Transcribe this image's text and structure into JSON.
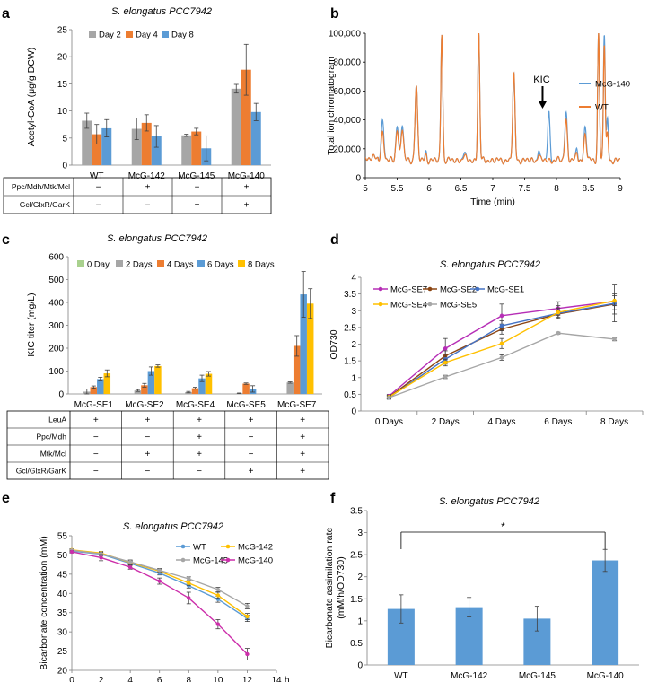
{
  "panels": {
    "a": {
      "letter": "a",
      "chart_data": {
        "type": "bar",
        "title": "S. elongatus PCC7942",
        "ylabel": "Acetyl-CoA (μg/g DCW)",
        "xlabel": "",
        "ylim": [
          0,
          25
        ],
        "yticks": [
          0,
          5,
          10,
          15,
          20,
          25
        ],
        "categories": [
          "WT",
          "McG-142",
          "McG-145",
          "McG-140"
        ],
        "series": [
          {
            "name": "Day 2",
            "color": "#A6A6A6",
            "values": [
              8.2,
              6.7,
              5.5,
              14.1
            ],
            "errors": [
              1.4,
              2.0,
              0.2,
              0.8
            ]
          },
          {
            "name": "Day 4",
            "color": "#ED7D31",
            "values": [
              5.7,
              7.8,
              6.2,
              17.6
            ],
            "errors": [
              1.8,
              1.5,
              0.6,
              4.7
            ]
          },
          {
            "name": "Day 8",
            "color": "#5B9BD5",
            "values": [
              6.8,
              5.3,
              3.1,
              9.8
            ],
            "errors": [
              1.6,
              2.0,
              2.3,
              1.6
            ]
          }
        ],
        "table": {
          "rows": [
            {
              "label": "Ppc/Mdh/Mtk/Mcl",
              "cells": [
                "−",
                "+",
                "−",
                "+"
              ]
            },
            {
              "label": "Gcl/GlxR/GarK",
              "cells": [
                "−",
                "−",
                "+",
                "+"
              ]
            }
          ]
        }
      }
    },
    "b": {
      "letter": "b",
      "annotation": "KIC",
      "chart_data": {
        "type": "line",
        "title": "",
        "xlabel": "Time (min)",
        "ylabel": "Total ion chromatogram",
        "xlim": [
          5,
          9
        ],
        "ylim": [
          0,
          100000
        ],
        "xticks": [
          5,
          5.5,
          6,
          6.5,
          7,
          7.5,
          8,
          8.5,
          9
        ],
        "xtick_labels": [
          "5",
          "5.5",
          "6",
          "6.5",
          "7",
          "7.5",
          "8",
          "8.5",
          "9"
        ],
        "yticks": [
          0,
          20000,
          40000,
          60000,
          80000,
          100000
        ],
        "ytick_labels": [
          "0",
          "20,000",
          "40,000",
          "60,000",
          "80,000",
          "100,000"
        ],
        "series": [
          {
            "name": "McG-140",
            "color": "#5B9BD5"
          },
          {
            "name": "WT",
            "color": "#ED7D31"
          }
        ],
        "baseline": 12000,
        "peaks": [
          {
            "x": 5.27,
            "McG-140": 39000,
            "WT": 31000,
            "w": 0.022
          },
          {
            "x": 5.5,
            "McG-140": 37000,
            "WT": 34000,
            "w": 0.02
          },
          {
            "x": 5.58,
            "McG-140": 37000,
            "WT": 34000,
            "w": 0.02
          },
          {
            "x": 5.8,
            "McG-140": 63000,
            "WT": 63000,
            "w": 0.02
          },
          {
            "x": 5.95,
            "McG-140": 18000,
            "WT": 16000,
            "w": 0.015
          },
          {
            "x": 6.2,
            "McG-140": 100000,
            "WT": 100000,
            "w": 0.015
          },
          {
            "x": 6.55,
            "McG-140": 17000,
            "WT": 15000,
            "w": 0.02
          },
          {
            "x": 6.78,
            "McG-140": 100000,
            "WT": 100000,
            "w": 0.015
          },
          {
            "x": 7.33,
            "McG-140": 71000,
            "WT": 71000,
            "w": 0.018
          },
          {
            "x": 7.72,
            "McG-140": 20000,
            "WT": 17000,
            "w": 0.015
          },
          {
            "x": 7.88,
            "McG-140": 45000,
            "WT": 12000,
            "w": 0.018
          },
          {
            "x": 8.15,
            "McG-140": 45000,
            "WT": 40000,
            "w": 0.02
          },
          {
            "x": 8.32,
            "McG-140": 20000,
            "WT": 17000,
            "w": 0.015
          },
          {
            "x": 8.45,
            "McG-140": 35000,
            "WT": 30000,
            "w": 0.02
          },
          {
            "x": 8.66,
            "McG-140": 100000,
            "WT": 100000,
            "w": 0.014
          },
          {
            "x": 8.75,
            "McG-140": 100000,
            "WT": 93000,
            "w": 0.014
          },
          {
            "x": 8.8,
            "McG-140": 40000,
            "WT": 30000,
            "w": 0.014
          }
        ]
      }
    },
    "c": {
      "letter": "c",
      "chart_data": {
        "type": "bar",
        "title": "S. elongatus PCC7942",
        "ylabel": "KIC titer (mg/L)",
        "xlabel": "",
        "ylim": [
          0,
          600
        ],
        "yticks": [
          0,
          100,
          200,
          300,
          400,
          500,
          600
        ],
        "categories": [
          "McG-SE1",
          "McG-SE2",
          "McG-SE4",
          "McG-SE5",
          "McG-SE7"
        ],
        "series": [
          {
            "name": "0 Day",
            "color": "#A9D18E",
            "values": [
              0,
              0,
              0,
              0,
              0
            ],
            "errors": [
              0,
              0,
              0,
              0,
              0
            ]
          },
          {
            "name": "2 Days",
            "color": "#A6A6A6",
            "values": [
              10,
              15,
              8,
              3,
              50
            ],
            "errors": [
              12,
              4,
              3,
              1,
              3
            ]
          },
          {
            "name": "4 Days",
            "color": "#ED7D31",
            "values": [
              30,
              38,
              25,
              45,
              210
            ],
            "errors": [
              5,
              8,
              4,
              3,
              45
            ]
          },
          {
            "name": "6 Days",
            "color": "#5B9BD5",
            "values": [
              65,
              100,
              68,
              22,
              435
            ],
            "errors": [
              8,
              18,
              14,
              14,
              100
            ]
          },
          {
            "name": "8 Days",
            "color": "#FFC000",
            "values": [
              90,
              122,
              88,
              0,
              395
            ],
            "errors": [
              15,
              5,
              10,
              0,
              65
            ]
          }
        ],
        "table": {
          "rows": [
            {
              "label": "LeuA",
              "cells": [
                "+",
                "+",
                "+",
                "+",
                "+"
              ]
            },
            {
              "label": "Ppc/Mdh",
              "cells": [
                "−",
                "−",
                "+",
                "−",
                "+"
              ]
            },
            {
              "label": "Mtk/Mcl",
              "cells": [
                "−",
                "+",
                "+",
                "−",
                "+"
              ]
            },
            {
              "label": "Gcl/GlxR/GarK",
              "cells": [
                "−",
                "−",
                "−",
                "+",
                "+"
              ]
            }
          ]
        }
      }
    },
    "d": {
      "letter": "d",
      "chart_data": {
        "type": "line",
        "title": "S. elongatus PCC7942",
        "ylabel": "OD730",
        "xlabel": "",
        "ylim": [
          0,
          4
        ],
        "yticks": [
          0,
          0.5,
          1,
          1.5,
          2,
          2.5,
          3,
          3.5,
          4
        ],
        "ytick_labels": [
          "0",
          "0.5",
          "1",
          "1.5",
          "2",
          "2.5",
          "3",
          "3.5",
          "4"
        ],
        "categories": [
          "0 Days",
          "2 Days",
          "4 Days",
          "6 Days",
          "8 Days"
        ],
        "series": [
          {
            "name": "McG-SE7",
            "color": "#B62EB6",
            "values": [
              0.45,
              1.87,
              2.85,
              3.07,
              3.28
            ],
            "errors": [
              0.05,
              0.3,
              0.35,
              0.2,
              0.25
            ]
          },
          {
            "name": "McG-SE2",
            "color": "#8B4513",
            "values": [
              0.42,
              1.65,
              2.45,
              2.9,
              3.2
            ],
            "errors": [
              0.05,
              0.15,
              0.15,
              0.1,
              0.3
            ]
          },
          {
            "name": "McG-SE1",
            "color": "#4472C4",
            "values": [
              0.4,
              1.55,
              2.55,
              2.92,
              3.22
            ],
            "errors": [
              0.05,
              0.15,
              0.15,
              0.15,
              0.55
            ]
          },
          {
            "name": "McG-SE4",
            "color": "#FFC000",
            "values": [
              0.42,
              1.45,
              2.02,
              2.95,
              3.3
            ],
            "errors": [
              0.05,
              0.1,
              0.15,
              0.2,
              0.15
            ]
          },
          {
            "name": "McG-SE5",
            "color": "#A6A6A6",
            "values": [
              0.4,
              1.02,
              1.6,
              2.33,
              2.15
            ],
            "errors": [
              0.03,
              0.05,
              0.08,
              0.03,
              0.05
            ]
          }
        ]
      }
    },
    "e": {
      "letter": "e",
      "chart_data": {
        "type": "line",
        "title": "S. elongatus PCC7942",
        "ylabel": "Bicarbonate concentration (mM)",
        "xlabel": "",
        "x_unit": "h",
        "xlim": [
          0,
          14
        ],
        "ylim": [
          20,
          55
        ],
        "xticks": [
          0,
          2,
          4,
          6,
          8,
          10,
          12,
          14
        ],
        "yticks": [
          20,
          25,
          30,
          35,
          40,
          45,
          50,
          55
        ],
        "x": [
          0,
          2,
          4,
          6,
          8,
          10,
          12
        ],
        "series": [
          {
            "name": "WT",
            "color": "#5B9BD5",
            "values": [
              51,
              50.2,
              47.8,
              45.3,
              42,
              38.5,
              33.5
            ],
            "errors": [
              0.3,
              0.4,
              0.5,
              0.5,
              0.6,
              0.8,
              0.8
            ]
          },
          {
            "name": "McG-142",
            "color": "#FFC000",
            "values": [
              51.3,
              50.5,
              48,
              45.8,
              42.7,
              39.5,
              34
            ],
            "errors": [
              0.3,
              0.4,
              0.5,
              0.5,
              0.6,
              0.8,
              0.8
            ]
          },
          {
            "name": "McG-145",
            "color": "#A6A6A6",
            "values": [
              51.2,
              50.3,
              48.2,
              46,
              43.8,
              41,
              36.7
            ],
            "errors": [
              0.3,
              0.4,
              0.5,
              0.5,
              0.5,
              0.6,
              0.7
            ]
          },
          {
            "name": "McG-140",
            "color": "#CC2EAA",
            "values": [
              50.8,
              49.3,
              46.8,
              43.2,
              38.8,
              32,
              24.2
            ],
            "errors": [
              0.3,
              0.8,
              0.5,
              0.8,
              1.5,
              1.2,
              1.5
            ]
          }
        ]
      }
    },
    "f": {
      "letter": "f",
      "significance": "*",
      "chart_data": {
        "type": "bar",
        "title": "S. elongatus PCC7942",
        "ylabel": "Bicarbonate assimilation rate (mM/h/OD730)",
        "ylabel_lines": [
          "Bicarbonate assimilation rate",
          "(mM/h/OD730)"
        ],
        "xlabel": "",
        "ylim": [
          0,
          3.5
        ],
        "yticks": [
          0,
          0.5,
          1,
          1.5,
          2,
          2.5,
          3,
          3.5
        ],
        "ytick_labels": [
          "0",
          "0.5",
          "1",
          "1.5",
          "2",
          "2.5",
          "3",
          "3.5"
        ],
        "categories": [
          "WT",
          "McG-142",
          "McG-145",
          "McG-140"
        ],
        "series": [
          {
            "name": "rate",
            "color": "#5B9BD5",
            "values": [
              1.27,
              1.31,
              1.05,
              2.37
            ],
            "errors": [
              0.32,
              0.22,
              0.28,
              0.25
            ]
          }
        ]
      }
    }
  }
}
